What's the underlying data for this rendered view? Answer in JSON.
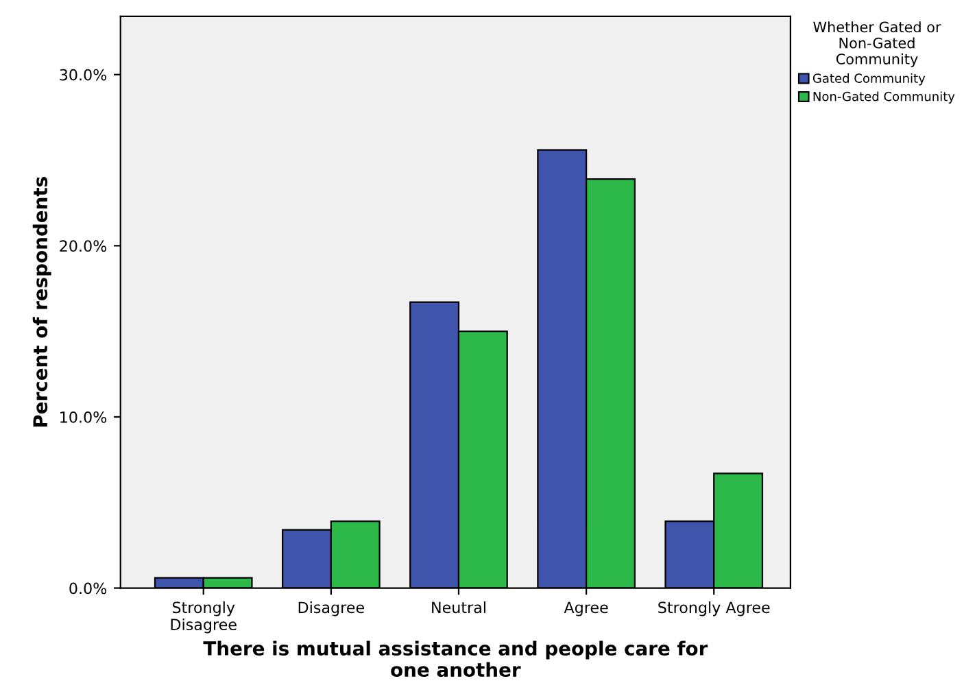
{
  "chart_data": {
    "type": "bar",
    "xlabel": "There is mutual assistance and people care for\none another",
    "ylabel": "Percent of respondents",
    "legend_title": "Whether Gated or\nNon-Gated\nCommunity",
    "categories": [
      "Strongly\nDisagree",
      "Disagree",
      "Neutral",
      "Agree",
      "Strongly Agree"
    ],
    "series": [
      {
        "name": "Gated Community",
        "color": "#3e55ab",
        "values": [
          0.6,
          3.4,
          16.7,
          25.6,
          3.9
        ]
      },
      {
        "name": "Non-Gated Community",
        "color": "#2db84a",
        "values": [
          0.6,
          3.9,
          15.0,
          23.9,
          6.7
        ]
      }
    ],
    "ylim": [
      0,
      33.4
    ],
    "yticks": [
      {
        "value": 0,
        "label": "0.0%"
      },
      {
        "value": 10,
        "label": "10.0%"
      },
      {
        "value": 20,
        "label": "20.0%"
      },
      {
        "value": 30,
        "label": "30.0%"
      }
    ],
    "legend": "right"
  }
}
